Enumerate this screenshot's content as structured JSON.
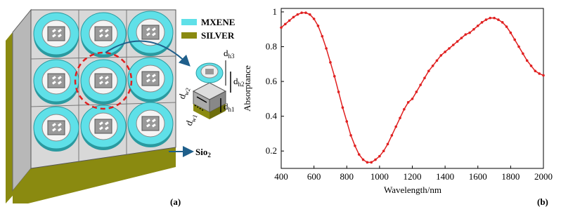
{
  "diagram": {
    "legend": [
      "MXENE",
      "SILVER"
    ],
    "labels": {
      "dh3": {
        "text": "d",
        "sub": "h3"
      },
      "dh2": {
        "text": "d",
        "sub": "h2"
      },
      "dh1": {
        "text": "d",
        "sub": "h1"
      },
      "dw2": {
        "text": "d",
        "sub": "w2"
      },
      "dw1": {
        "text": "d",
        "sub": "w1"
      },
      "substrate": {
        "text": "Sio",
        "sub": "2"
      }
    },
    "caption": "(a)"
  },
  "chart_data": {
    "type": "line",
    "xlabel": "Wavelength/nm",
    "ylabel": "Absorptance",
    "caption": "(b)",
    "x": [
      400,
      425,
      450,
      475,
      500,
      525,
      550,
      575,
      600,
      625,
      650,
      675,
      700,
      725,
      750,
      775,
      800,
      825,
      850,
      875,
      900,
      925,
      950,
      975,
      1000,
      1025,
      1050,
      1075,
      1100,
      1125,
      1150,
      1175,
      1200,
      1225,
      1250,
      1275,
      1300,
      1325,
      1350,
      1375,
      1400,
      1425,
      1450,
      1475,
      1500,
      1525,
      1550,
      1575,
      1600,
      1625,
      1650,
      1675,
      1700,
      1725,
      1750,
      1775,
      1800,
      1825,
      1850,
      1875,
      1900,
      1925,
      1950,
      1975,
      2000
    ],
    "series": [
      {
        "color": "#e02020",
        "values": [
          0.91,
          0.93,
          0.95,
          0.97,
          0.985,
          0.995,
          0.995,
          0.985,
          0.96,
          0.92,
          0.86,
          0.79,
          0.71,
          0.63,
          0.54,
          0.45,
          0.37,
          0.29,
          0.23,
          0.18,
          0.15,
          0.135,
          0.135,
          0.15,
          0.17,
          0.2,
          0.24,
          0.29,
          0.34,
          0.39,
          0.44,
          0.48,
          0.5,
          0.54,
          0.58,
          0.62,
          0.66,
          0.69,
          0.72,
          0.75,
          0.77,
          0.79,
          0.81,
          0.83,
          0.85,
          0.87,
          0.88,
          0.9,
          0.92,
          0.94,
          0.955,
          0.965,
          0.965,
          0.955,
          0.94,
          0.915,
          0.88,
          0.84,
          0.8,
          0.76,
          0.72,
          0.69,
          0.66,
          0.645,
          0.635
        ]
      }
    ],
    "xlim": [
      400,
      2000
    ],
    "xticks": [
      400,
      600,
      800,
      1000,
      1200,
      1400,
      1600,
      1800,
      2000
    ],
    "ylim": [
      0.1,
      1.02
    ],
    "yticks": [
      0.2,
      0.4,
      0.6,
      0.8,
      1
    ]
  }
}
